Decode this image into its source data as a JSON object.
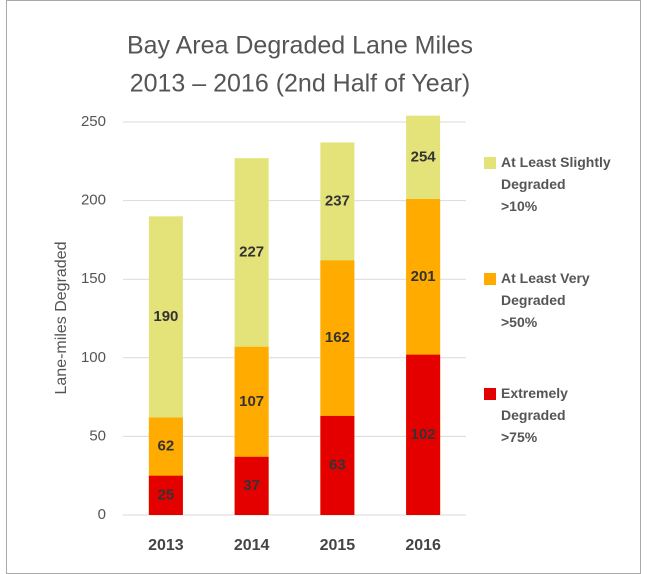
{
  "chart_data": {
    "type": "bar",
    "mode": "overlap",
    "title": [
      "Bay Area Degraded Lane Miles",
      "2013 – 2016 (2nd Half of Year)"
    ],
    "y_label": "Lane-miles Degraded",
    "categories": [
      "2013",
      "2014",
      "2015",
      "2016"
    ],
    "series": [
      {
        "name": "At Least Slightly Degraded >10%",
        "color": "#e4e37a",
        "values": [
          190,
          227,
          237,
          254
        ]
      },
      {
        "name": "At Least Very Degraded >50%",
        "color": "#ffab00",
        "values": [
          62,
          107,
          162,
          201
        ]
      },
      {
        "name": "Extremely Degraded >75%",
        "color": "#e50000",
        "values": [
          25,
          37,
          63,
          102
        ]
      }
    ],
    "ylim": [
      0,
      250
    ],
    "yticks": [
      0,
      50,
      100,
      150,
      200,
      250
    ],
    "grid": true,
    "legend": "right"
  }
}
